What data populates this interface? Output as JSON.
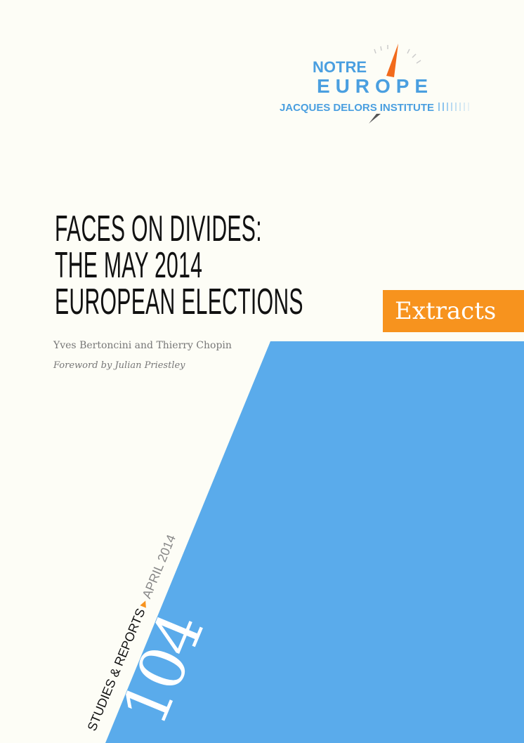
{
  "logo": {
    "line1": "NOTRE",
    "line2": "EUROPE",
    "line3": "JACQUES DELORS INSTITUTE"
  },
  "title": {
    "lines": [
      "FACES ON DIVIDES:",
      "THE MAY 2014",
      "EUROPEAN ELECTIONS"
    ]
  },
  "authors": "Yves Bertoncini and Thierry Chopin",
  "foreword": "Foreword by Julian Priestley",
  "badge": "Extracts",
  "series": {
    "name": "STUDIES & REPORTS",
    "date": "APRIL 2014",
    "number": "104"
  },
  "colors": {
    "blue": "#5aabeb",
    "orange": "#f7931e",
    "logo_blue": "#4a9fe0"
  }
}
